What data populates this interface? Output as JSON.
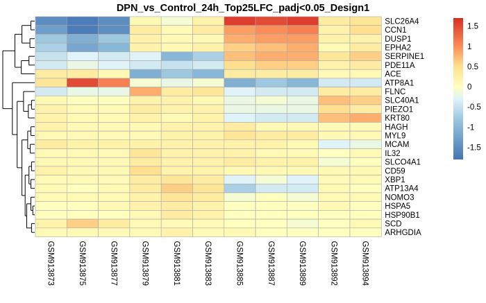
{
  "chart_data": {
    "type": "heatmap",
    "title": "DPN_vs_Control_24h_Top25LFC_padj<0.05_Design1",
    "xlabel": "",
    "ylabel": "",
    "columns": [
      "GSM913873",
      "GSM913875",
      "GSM913877",
      "GSM913879",
      "GSM913881",
      "GSM913883",
      "GSM913885",
      "GSM913887",
      "GSM913889",
      "GSM913892",
      "GSM913894"
    ],
    "rows": [
      "SLC26A4",
      "CCN1",
      "DUSP1",
      "EPHA2",
      "SERPINE1",
      "PDE11A",
      "ACE",
      "ATP8A1",
      "FLNC",
      "SLC40A1",
      "PIEZO1",
      "KRT80",
      "HAGH",
      "MYL9",
      "MCAM",
      "IL32",
      "SLCO4A1",
      "CD59",
      "XBP1",
      "ATP13A4",
      "NOMO3",
      "HSPA5",
      "HSP90B1",
      "SCD",
      "ARHGDIA"
    ],
    "values": [
      [
        -1.5,
        -1.7,
        -1.5,
        0.1,
        -0.1,
        0.2,
        1.6,
        1.5,
        1.6,
        0.3,
        0.4
      ],
      [
        -1.3,
        -1.7,
        -1.5,
        0.3,
        0.1,
        0.3,
        0.9,
        1.0,
        1.1,
        0.2,
        0.5
      ],
      [
        -0.8,
        -1.1,
        -0.8,
        0.2,
        0.1,
        0.1,
        0.8,
        0.9,
        0.9,
        0.2,
        0.2
      ],
      [
        -0.7,
        -1.2,
        -1.0,
        0.2,
        0.1,
        0.2,
        0.6,
        0.7,
        0.8,
        0.1,
        0.3
      ],
      [
        -0.5,
        -0.3,
        -0.4,
        -0.3,
        -1.0,
        -0.7,
        0.7,
        0.8,
        0.8,
        0.4,
        0.6
      ],
      [
        -0.4,
        -0.2,
        -0.3,
        -0.4,
        -0.5,
        -0.4,
        0.5,
        0.6,
        0.6,
        0.2,
        0.3
      ],
      [
        0.3,
        0.3,
        0.1,
        -1.1,
        -0.8,
        -1.0,
        0.3,
        0.3,
        0.3,
        0.1,
        0.1
      ],
      [
        0.4,
        1.5,
        1.1,
        -0.1,
        -0.2,
        -0.1,
        -1.1,
        -0.8,
        -1.0,
        -0.4,
        -0.4
      ],
      [
        -0.4,
        -0.2,
        -0.2,
        0.8,
        0.3,
        0.4,
        -0.3,
        -0.4,
        -0.4,
        0.3,
        0.3
      ],
      [
        0.1,
        0.0,
        0.0,
        0.2,
        0.2,
        0.1,
        -0.2,
        -0.1,
        -0.2,
        0.7,
        0.6
      ],
      [
        0.2,
        0.1,
        0.1,
        0.3,
        0.2,
        0.2,
        -0.2,
        -0.2,
        -0.2,
        0.5,
        0.3
      ],
      [
        0.2,
        0.1,
        0.1,
        0.2,
        0.1,
        0.2,
        -0.3,
        -0.4,
        -0.4,
        0.7,
        0.8
      ],
      [
        0.2,
        0.1,
        0.1,
        0.1,
        0.2,
        0.2,
        0.3,
        0.1,
        0.1,
        0.1,
        0.1
      ],
      [
        0.1,
        0.1,
        0.1,
        0.1,
        0.2,
        0.2,
        0.4,
        0.3,
        0.3,
        0.1,
        0.1
      ],
      [
        0.3,
        0.2,
        0.2,
        0.2,
        0.2,
        0.2,
        0.2,
        0.2,
        0.1,
        -0.3,
        -0.2
      ],
      [
        0.1,
        0.1,
        0.1,
        0.4,
        0.2,
        0.2,
        0.2,
        0.1,
        0.1,
        0.0,
        0.1
      ],
      [
        0.1,
        0.1,
        0.1,
        0.3,
        0.2,
        0.2,
        0.3,
        0.2,
        0.2,
        -0.1,
        0.0
      ],
      [
        0.2,
        0.1,
        0.1,
        0.5,
        0.2,
        0.2,
        0.1,
        0.1,
        0.1,
        0.1,
        0.1
      ],
      [
        0.1,
        0.1,
        0.1,
        0.3,
        0.4,
        0.3,
        -0.3,
        -0.1,
        -0.3,
        0.1,
        0.1
      ],
      [
        0.1,
        0.0,
        0.1,
        0.3,
        0.6,
        0.4,
        -0.7,
        -0.4,
        -0.4,
        0.1,
        0.0
      ],
      [
        0.1,
        0.1,
        0.1,
        0.2,
        0.4,
        0.3,
        -0.1,
        0.0,
        -0.1,
        0.1,
        0.1
      ],
      [
        0.0,
        0.0,
        0.1,
        0.2,
        0.3,
        0.2,
        0.0,
        0.0,
        0.0,
        0.1,
        0.0
      ],
      [
        0.0,
        0.0,
        0.0,
        0.1,
        0.3,
        0.2,
        0.0,
        0.0,
        0.0,
        0.0,
        0.0
      ],
      [
        0.2,
        0.6,
        0.3,
        0.1,
        0.1,
        0.1,
        0.0,
        0.0,
        -0.1,
        0.0,
        0.1
      ],
      [
        0.1,
        0.1,
        0.1,
        0.1,
        0.2,
        0.1,
        0.1,
        0.0,
        0.0,
        0.0,
        0.0
      ]
    ],
    "color_scale": {
      "min": -1.8,
      "max": 1.7,
      "stops": [
        {
          "value": -1.8,
          "color": "#4575b4"
        },
        {
          "value": -0.9,
          "color": "#91bfdb"
        },
        {
          "value": -0.3,
          "color": "#e0f3f8"
        },
        {
          "value": 0.0,
          "color": "#ffffbf"
        },
        {
          "value": 0.5,
          "color": "#fee090"
        },
        {
          "value": 1.0,
          "color": "#fc8d59"
        },
        {
          "value": 1.7,
          "color": "#d73027"
        }
      ],
      "ticks": [
        1.5,
        1,
        0.5,
        0,
        -0.5,
        -1,
        -1.5
      ]
    },
    "row_dendrogram": true,
    "column_dendrogram": false,
    "legend_position": "right",
    "cell_border_color": "#a8a8a8"
  }
}
